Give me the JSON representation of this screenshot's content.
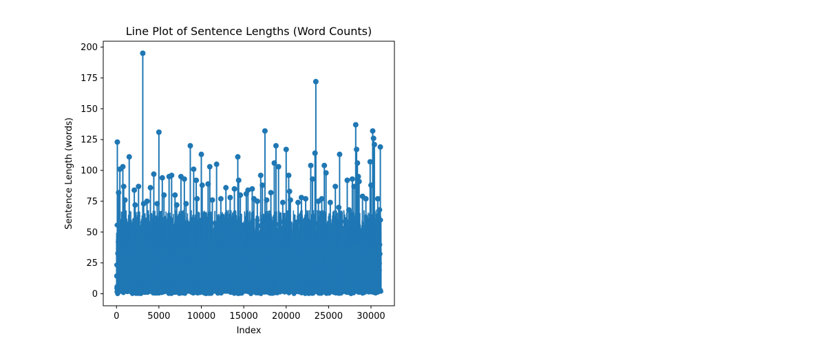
{
  "chart_data": {
    "type": "line",
    "title": "Line Plot of Sentence Lengths (Word Counts)",
    "xlabel": "Index",
    "ylabel": "Sentence Length (words)",
    "xlim": [
      -1560,
      32760
    ],
    "ylim": [
      -9.75,
      204.75
    ],
    "xticks": [
      0,
      5000,
      10000,
      15000,
      20000,
      25000,
      30000
    ],
    "xtick_labels": [
      "0",
      "5000",
      "10000",
      "15000",
      "20000",
      "25000",
      "30000"
    ],
    "yticks": [
      0,
      25,
      50,
      75,
      100,
      125,
      150,
      175,
      200
    ],
    "ytick_labels": [
      "0",
      "25",
      "50",
      "75",
      "100",
      "125",
      "150",
      "175",
      "200"
    ],
    "grid": false,
    "markers": true,
    "n_points": 31200,
    "series": [
      {
        "color": "#1f77b4",
        "min": 0,
        "typical_range": [
          0,
          50
        ],
        "peaks": [
          {
            "x": 100,
            "y": 123
          },
          {
            "x": 250,
            "y": 82
          },
          {
            "x": 400,
            "y": 101
          },
          {
            "x": 750,
            "y": 103
          },
          {
            "x": 850,
            "y": 87
          },
          {
            "x": 1000,
            "y": 76
          },
          {
            "x": 1500,
            "y": 111
          },
          {
            "x": 2100,
            "y": 84
          },
          {
            "x": 2200,
            "y": 72
          },
          {
            "x": 2600,
            "y": 87
          },
          {
            "x": 3100,
            "y": 195
          },
          {
            "x": 3200,
            "y": 73
          },
          {
            "x": 3600,
            "y": 75
          },
          {
            "x": 4000,
            "y": 86
          },
          {
            "x": 4400,
            "y": 97
          },
          {
            "x": 4800,
            "y": 73
          },
          {
            "x": 5000,
            "y": 131
          },
          {
            "x": 5400,
            "y": 94
          },
          {
            "x": 5600,
            "y": 80
          },
          {
            "x": 6200,
            "y": 95
          },
          {
            "x": 6500,
            "y": 96
          },
          {
            "x": 6900,
            "y": 80
          },
          {
            "x": 7100,
            "y": 72
          },
          {
            "x": 7600,
            "y": 95
          },
          {
            "x": 8000,
            "y": 93
          },
          {
            "x": 8200,
            "y": 73
          },
          {
            "x": 8700,
            "y": 120
          },
          {
            "x": 9100,
            "y": 101
          },
          {
            "x": 9400,
            "y": 92
          },
          {
            "x": 9500,
            "y": 77
          },
          {
            "x": 10000,
            "y": 113
          },
          {
            "x": 10100,
            "y": 88
          },
          {
            "x": 10800,
            "y": 89
          },
          {
            "x": 11000,
            "y": 103
          },
          {
            "x": 11300,
            "y": 76
          },
          {
            "x": 11800,
            "y": 105
          },
          {
            "x": 12300,
            "y": 77
          },
          {
            "x": 12900,
            "y": 86
          },
          {
            "x": 13400,
            "y": 78
          },
          {
            "x": 13900,
            "y": 85
          },
          {
            "x": 14300,
            "y": 111
          },
          {
            "x": 14400,
            "y": 92
          },
          {
            "x": 14600,
            "y": 80
          },
          {
            "x": 15300,
            "y": 81
          },
          {
            "x": 15500,
            "y": 84
          },
          {
            "x": 16000,
            "y": 85
          },
          {
            "x": 16200,
            "y": 77
          },
          {
            "x": 16600,
            "y": 75
          },
          {
            "x": 17000,
            "y": 96
          },
          {
            "x": 17200,
            "y": 88
          },
          {
            "x": 17500,
            "y": 132
          },
          {
            "x": 17700,
            "y": 76
          },
          {
            "x": 18200,
            "y": 82
          },
          {
            "x": 18600,
            "y": 106
          },
          {
            "x": 18800,
            "y": 120
          },
          {
            "x": 19100,
            "y": 103
          },
          {
            "x": 19600,
            "y": 74
          },
          {
            "x": 20000,
            "y": 117
          },
          {
            "x": 20300,
            "y": 96
          },
          {
            "x": 20400,
            "y": 83
          },
          {
            "x": 20500,
            "y": 76
          },
          {
            "x": 21400,
            "y": 74
          },
          {
            "x": 21800,
            "y": 78
          },
          {
            "x": 22300,
            "y": 77
          },
          {
            "x": 22900,
            "y": 104
          },
          {
            "x": 23100,
            "y": 93
          },
          {
            "x": 23400,
            "y": 114
          },
          {
            "x": 23500,
            "y": 172
          },
          {
            "x": 23800,
            "y": 75
          },
          {
            "x": 24200,
            "y": 77
          },
          {
            "x": 24500,
            "y": 104
          },
          {
            "x": 24700,
            "y": 98
          },
          {
            "x": 25200,
            "y": 74
          },
          {
            "x": 25800,
            "y": 87
          },
          {
            "x": 26200,
            "y": 70
          },
          {
            "x": 26300,
            "y": 113
          },
          {
            "x": 27200,
            "y": 92
          },
          {
            "x": 27400,
            "y": 68
          },
          {
            "x": 27800,
            "y": 93
          },
          {
            "x": 28000,
            "y": 87
          },
          {
            "x": 28200,
            "y": 137
          },
          {
            "x": 28300,
            "y": 117
          },
          {
            "x": 28400,
            "y": 106
          },
          {
            "x": 28500,
            "y": 95
          },
          {
            "x": 28600,
            "y": 91
          },
          {
            "x": 29000,
            "y": 79
          },
          {
            "x": 29400,
            "y": 77
          },
          {
            "x": 29900,
            "y": 107
          },
          {
            "x": 30000,
            "y": 88
          },
          {
            "x": 30200,
            "y": 132
          },
          {
            "x": 30300,
            "y": 126
          },
          {
            "x": 30400,
            "y": 121
          },
          {
            "x": 30800,
            "y": 77
          },
          {
            "x": 31000,
            "y": 68
          },
          {
            "x": 31100,
            "y": 119
          }
        ]
      }
    ]
  }
}
